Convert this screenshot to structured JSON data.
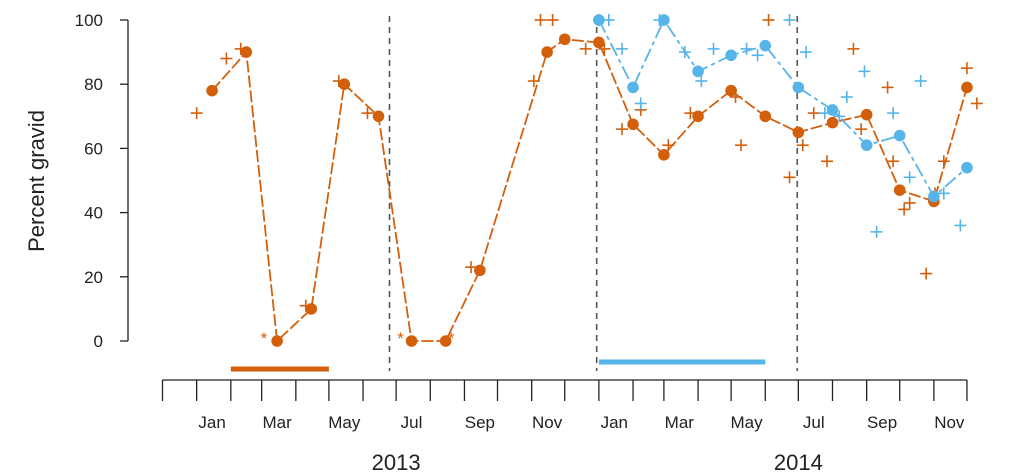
{
  "chart_data": {
    "type": "line",
    "ylabel": "Percent gravid",
    "ylim": [
      0,
      100
    ],
    "yticks": [
      0,
      20,
      40,
      60,
      80,
      100
    ],
    "xlim": [
      "2012-12-01",
      "2014-12-31"
    ],
    "month_ticks": [
      "2012-12-01",
      "2013-01-01",
      "2013-02-01",
      "2013-03-01",
      "2013-04-01",
      "2013-05-01",
      "2013-06-01",
      "2013-07-01",
      "2013-08-01",
      "2013-09-01",
      "2013-10-01",
      "2013-11-01",
      "2013-12-01",
      "2014-01-01",
      "2014-02-01",
      "2014-03-01",
      "2014-04-01",
      "2014-05-01",
      "2014-06-01",
      "2014-07-01",
      "2014-08-01",
      "2014-09-01",
      "2014-10-01",
      "2014-11-01",
      "2014-12-01"
    ],
    "month_labels": [
      {
        "label": "Jan",
        "date": "2013-01-15"
      },
      {
        "label": "Mar",
        "date": "2013-03-15"
      },
      {
        "label": "May",
        "date": "2013-05-15"
      },
      {
        "label": "Jul",
        "date": "2013-07-15"
      },
      {
        "label": "Sep",
        "date": "2013-09-15"
      },
      {
        "label": "Nov",
        "date": "2013-11-15"
      },
      {
        "label": "Jan",
        "date": "2014-01-15"
      },
      {
        "label": "Mar",
        "date": "2014-03-15"
      },
      {
        "label": "May",
        "date": "2014-05-15"
      },
      {
        "label": "Jul",
        "date": "2014-07-15"
      },
      {
        "label": "Sep",
        "date": "2014-09-15"
      },
      {
        "label": "Nov",
        "date": "2014-11-15"
      }
    ],
    "year_labels": [
      {
        "label": "2013",
        "date": "2013-07-01"
      },
      {
        "label": "2014",
        "date": "2014-07-01"
      }
    ],
    "dashed_lines": [
      "2013-06-25",
      "2013-12-30",
      "2014-06-30"
    ],
    "colors": {
      "orange": "#d35f0a",
      "blue": "#56b4e9",
      "axis": "#222222",
      "dashed": "#555555"
    },
    "series": [
      {
        "color": "orange",
        "points": [
          {
            "x": "2013-01-15",
            "y": 78
          },
          {
            "x": "2013-02-15",
            "y": 90
          },
          {
            "x": "2013-03-15",
            "y": 0
          },
          {
            "x": "2013-04-15",
            "y": 10
          },
          {
            "x": "2013-05-15",
            "y": 80
          },
          {
            "x": "2013-06-15",
            "y": 70
          },
          {
            "x": "2013-07-15",
            "y": 0
          },
          {
            "x": "2013-08-15",
            "y": 0
          },
          {
            "x": "2013-09-15",
            "y": 22
          },
          {
            "x": "2013-11-15",
            "y": 90
          },
          {
            "x": "2013-12-01",
            "y": 94
          },
          {
            "x": "2014-01-01",
            "y": 93
          },
          {
            "x": "2014-02-01",
            "y": 67.5
          },
          {
            "x": "2014-03-01",
            "y": 58
          },
          {
            "x": "2014-04-01",
            "y": 70
          },
          {
            "x": "2014-05-01",
            "y": 78
          },
          {
            "x": "2014-06-01",
            "y": 70
          },
          {
            "x": "2014-07-01",
            "y": 65
          },
          {
            "x": "2014-08-01",
            "y": 68
          },
          {
            "x": "2014-09-01",
            "y": 70.5
          },
          {
            "x": "2014-10-01",
            "y": 47
          },
          {
            "x": "2014-11-01",
            "y": 43.5
          },
          {
            "x": "2014-12-01",
            "y": 79
          }
        ],
        "crosses": [
          {
            "x": "2013-01-01",
            "y": 71
          },
          {
            "x": "2013-01-28",
            "y": 88
          },
          {
            "x": "2013-02-10",
            "y": 91
          },
          {
            "x": "2013-04-10",
            "y": 11
          },
          {
            "x": "2013-05-10",
            "y": 81
          },
          {
            "x": "2013-06-05",
            "y": 71
          },
          {
            "x": "2013-09-07",
            "y": 23
          },
          {
            "x": "2013-11-03",
            "y": 81
          },
          {
            "x": "2013-11-09",
            "y": 100
          },
          {
            "x": "2013-11-20",
            "y": 100
          },
          {
            "x": "2013-12-20",
            "y": 91
          },
          {
            "x": "2014-01-06",
            "y": 91
          },
          {
            "x": "2014-01-22",
            "y": 66
          },
          {
            "x": "2014-02-08",
            "y": 72
          },
          {
            "x": "2014-03-05",
            "y": 61
          },
          {
            "x": "2014-03-25",
            "y": 71
          },
          {
            "x": "2014-05-05",
            "y": 76
          },
          {
            "x": "2014-05-10",
            "y": 61
          },
          {
            "x": "2014-06-04",
            "y": 100
          },
          {
            "x": "2014-06-23",
            "y": 51
          },
          {
            "x": "2014-07-05",
            "y": 61
          },
          {
            "x": "2014-07-15",
            "y": 71
          },
          {
            "x": "2014-07-27",
            "y": 56
          },
          {
            "x": "2014-08-20",
            "y": 91
          },
          {
            "x": "2014-08-27",
            "y": 66
          },
          {
            "x": "2014-09-20",
            "y": 79
          },
          {
            "x": "2014-09-25",
            "y": 56
          },
          {
            "x": "2014-10-05",
            "y": 41
          },
          {
            "x": "2014-10-10",
            "y": 43
          },
          {
            "x": "2014-10-25",
            "y": 21
          },
          {
            "x": "2014-11-02",
            "y": 46
          },
          {
            "x": "2014-11-10",
            "y": 56
          },
          {
            "x": "2014-12-01",
            "y": 85
          },
          {
            "x": "2014-12-10",
            "y": 74
          }
        ],
        "asterisks": [
          {
            "x": "2013-03-03",
            "y": 1
          },
          {
            "x": "2013-07-05",
            "y": 1
          },
          {
            "x": "2013-08-20",
            "y": 1
          }
        ],
        "bar": {
          "start": "2013-02-01",
          "end": "2013-05-01"
        }
      },
      {
        "color": "blue",
        "points": [
          {
            "x": "2014-01-01",
            "y": 100
          },
          {
            "x": "2014-02-01",
            "y": 79
          },
          {
            "x": "2014-03-01",
            "y": 100
          },
          {
            "x": "2014-04-01",
            "y": 84
          },
          {
            "x": "2014-05-01",
            "y": 89
          },
          {
            "x": "2014-06-01",
            "y": 92
          },
          {
            "x": "2014-07-01",
            "y": 79
          },
          {
            "x": "2014-08-01",
            "y": 72
          },
          {
            "x": "2014-09-01",
            "y": 61
          },
          {
            "x": "2014-10-01",
            "y": 64
          },
          {
            "x": "2014-11-01",
            "y": 45
          },
          {
            "x": "2014-12-01",
            "y": 54
          }
        ],
        "crosses": [
          {
            "x": "2014-01-01",
            "y": 100
          },
          {
            "x": "2014-01-10",
            "y": 100
          },
          {
            "x": "2014-01-22",
            "y": 91
          },
          {
            "x": "2014-02-08",
            "y": 74
          },
          {
            "x": "2014-02-25",
            "y": 100
          },
          {
            "x": "2014-03-20",
            "y": 90
          },
          {
            "x": "2014-04-04",
            "y": 81
          },
          {
            "x": "2014-04-15",
            "y": 91
          },
          {
            "x": "2014-05-15",
            "y": 91
          },
          {
            "x": "2014-05-25",
            "y": 89
          },
          {
            "x": "2014-06-23",
            "y": 100
          },
          {
            "x": "2014-07-08",
            "y": 90
          },
          {
            "x": "2014-07-25",
            "y": 71
          },
          {
            "x": "2014-08-07",
            "y": 70
          },
          {
            "x": "2014-08-14",
            "y": 76
          },
          {
            "x": "2014-08-30",
            "y": 84
          },
          {
            "x": "2014-09-10",
            "y": 34
          },
          {
            "x": "2014-09-25",
            "y": 71
          },
          {
            "x": "2014-10-10",
            "y": 51
          },
          {
            "x": "2014-10-20",
            "y": 81
          },
          {
            "x": "2014-11-10",
            "y": 46
          },
          {
            "x": "2014-11-25",
            "y": 36
          }
        ],
        "asterisks": [],
        "bar": {
          "start": "2014-01-01",
          "end": "2014-06-01"
        }
      }
    ]
  }
}
